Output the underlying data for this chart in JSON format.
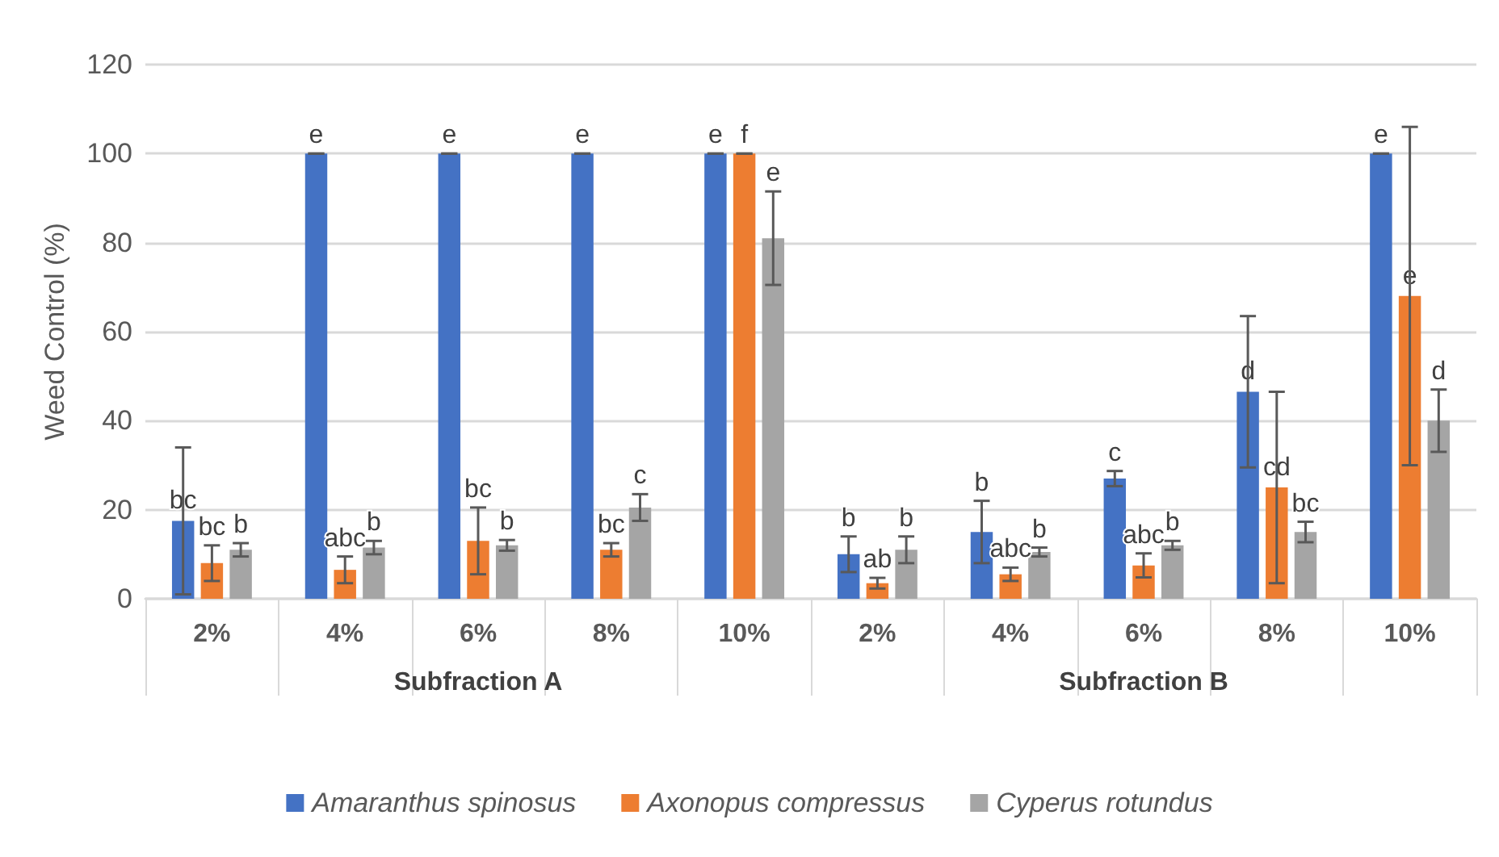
{
  "chart_data": {
    "type": "bar",
    "ylabel": "Weed Control (%)",
    "categories": [
      "2%",
      "4%",
      "6%",
      "8%",
      "10%",
      "2%",
      "4%",
      "6%",
      "8%",
      "10%"
    ],
    "annotations": [
      "Subfraction A",
      "Subfraction B"
    ],
    "series": [
      {
        "name": "Amaranthus spinosus",
        "color": "#4472c4",
        "values": [
          17.5,
          100,
          100,
          100,
          100,
          10,
          15,
          27,
          46.5,
          100
        ],
        "errors": [
          16.5,
          0,
          0,
          0,
          0,
          4,
          7,
          1.7,
          17,
          0
        ],
        "value_labels": [
          "bc",
          "e",
          "e",
          "e",
          "e",
          "b",
          "b",
          "c",
          "d",
          "e"
        ]
      },
      {
        "name": "Axonopus compressus",
        "color": "#ed7d31",
        "values": [
          8,
          6.5,
          13,
          11,
          100,
          3.5,
          5.5,
          7.5,
          25,
          68
        ],
        "errors": [
          4,
          3,
          7.5,
          1.5,
          0,
          1.2,
          1.5,
          2.7,
          21.5,
          38
        ],
        "value_labels": [
          "bc",
          "abc",
          "bc",
          "bc",
          "f",
          "ab",
          "abc",
          "abc",
          "cd",
          "e"
        ]
      },
      {
        "name": "Cyperus rotundus",
        "color": "#a5a5a5",
        "values": [
          11,
          11.5,
          12,
          20.5,
          81,
          11,
          10.5,
          12,
          15,
          40
        ],
        "errors": [
          1.5,
          1.5,
          1.2,
          3,
          10.5,
          3,
          1,
          1,
          2.3,
          7
        ],
        "value_labels": [
          "b",
          "b",
          "b",
          "c",
          "e",
          "b",
          "b",
          "b",
          "bc",
          "d"
        ]
      }
    ],
    "ylim": [
      0,
      120
    ],
    "yticks": [
      0,
      20,
      40,
      60,
      80,
      100,
      120
    ],
    "grid": "y",
    "legend": "bottom"
  }
}
